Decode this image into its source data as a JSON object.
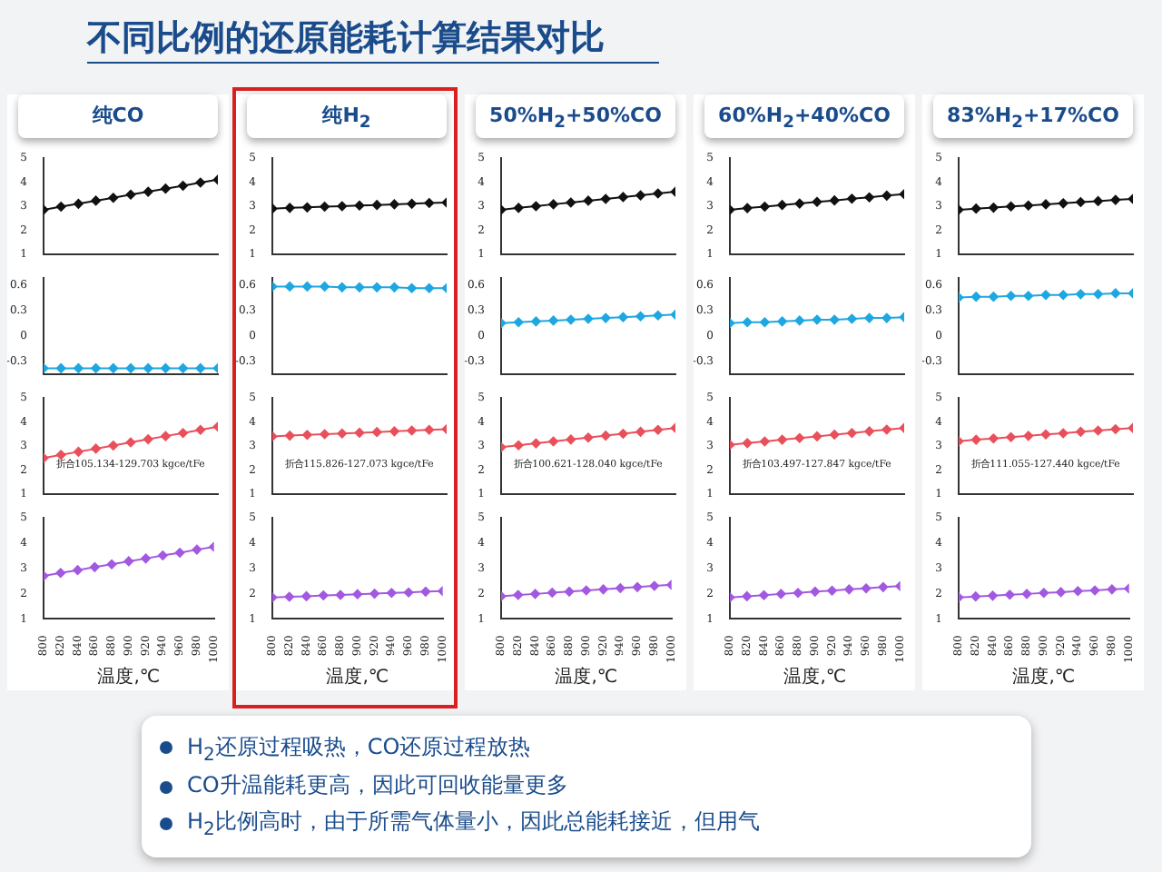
{
  "chart_data": [
    {
      "type": "line",
      "title": "纯CO",
      "annotations": [
        "不同比例的还原能耗计算结果对比",
        "H$_{2}$还原过程吸热，CO还原过程放热",
        "CO升温能耗更高，因此可回收能量更多",
        "H$_{2}$比例高时，由于所需气体量小，因此总能耗接近，但用气"
      ],
      "x": [
        800,
        820,
        840,
        860,
        880,
        900,
        920,
        940,
        960,
        980,
        1000
      ],
      "series": [
        {
          "color": "#111111",
          "values": [
            2.85,
            2.98,
            3.1,
            3.23,
            3.35,
            3.48,
            3.6,
            3.73,
            3.85,
            3.98,
            4.1
          ]
        }
      ],
      "xlim": [
        800,
        1000
      ],
      "xticks": [
        800,
        820,
        840,
        860,
        880,
        900,
        920,
        940,
        960,
        980,
        1000
      ],
      "ylim": [
        1,
        5
      ],
      "yticks": [
        1,
        2,
        3,
        4,
        5
      ],
      "tick_labels": "y",
      "marker": "diamond",
      "grid": false,
      "legend": false
    },
    {
      "type": "line",
      "title": "纯H$_{2}$",
      "x": [
        800,
        820,
        840,
        860,
        880,
        900,
        920,
        940,
        960,
        980,
        1000
      ],
      "series": [
        {
          "color": "#111111",
          "values": [
            2.9,
            2.93,
            2.95,
            2.98,
            3.0,
            3.03,
            3.05,
            3.08,
            3.1,
            3.13,
            3.15
          ]
        }
      ],
      "xlim": [
        800,
        1000
      ],
      "xticks": [
        800,
        820,
        840,
        860,
        880,
        900,
        920,
        940,
        960,
        980,
        1000
      ],
      "ylim": [
        1,
        5
      ],
      "yticks": [
        1,
        2,
        3,
        4,
        5
      ],
      "tick_labels": "y",
      "marker": "diamond",
      "grid": false,
      "legend": false
    },
    {
      "type": "line",
      "title": "50%H$_{2}$+50%CO",
      "x": [
        800,
        820,
        840,
        860,
        880,
        900,
        920,
        940,
        960,
        980,
        1000
      ],
      "series": [
        {
          "color": "#111111",
          "values": [
            2.85,
            2.93,
            3.0,
            3.08,
            3.15,
            3.23,
            3.3,
            3.38,
            3.45,
            3.53,
            3.6
          ]
        }
      ],
      "xlim": [
        800,
        1000
      ],
      "xticks": [
        800,
        820,
        840,
        860,
        880,
        900,
        920,
        940,
        960,
        980,
        1000
      ],
      "ylim": [
        1,
        5
      ],
      "yticks": [
        1,
        2,
        3,
        4,
        5
      ],
      "tick_labels": "y",
      "marker": "diamond",
      "grid": false,
      "legend": false
    },
    {
      "type": "line",
      "title": "60%H$_{2}$+40%CO",
      "x": [
        800,
        820,
        840,
        860,
        880,
        900,
        920,
        940,
        960,
        980,
        1000
      ],
      "series": [
        {
          "color": "#111111",
          "values": [
            2.85,
            2.92,
            2.98,
            3.05,
            3.11,
            3.18,
            3.24,
            3.31,
            3.37,
            3.44,
            3.5
          ]
        }
      ],
      "xlim": [
        800,
        1000
      ],
      "xticks": [
        800,
        820,
        840,
        860,
        880,
        900,
        920,
        940,
        960,
        980,
        1000
      ],
      "ylim": [
        1,
        5
      ],
      "yticks": [
        1,
        2,
        3,
        4,
        5
      ],
      "tick_labels": "y",
      "marker": "diamond",
      "grid": false,
      "legend": false
    },
    {
      "type": "line",
      "title": "83%H$_{2}$+17%CO",
      "x": [
        800,
        820,
        840,
        860,
        880,
        900,
        920,
        940,
        960,
        980,
        1000
      ],
      "series": [
        {
          "color": "#111111",
          "values": [
            2.85,
            2.9,
            2.94,
            2.99,
            3.03,
            3.08,
            3.12,
            3.17,
            3.21,
            3.26,
            3.3
          ]
        }
      ],
      "xlim": [
        800,
        1000
      ],
      "xticks": [
        800,
        820,
        840,
        860,
        880,
        900,
        920,
        940,
        960,
        980,
        1000
      ],
      "ylim": [
        1,
        5
      ],
      "yticks": [
        1,
        2,
        3,
        4,
        5
      ],
      "tick_labels": "y",
      "marker": "diamond",
      "grid": false,
      "legend": false
    },
    {
      "type": "line",
      "x": [
        800,
        820,
        840,
        860,
        880,
        900,
        920,
        940,
        960,
        980,
        1000
      ],
      "series": [
        {
          "color": "#1ea7e1",
          "values": [
            -0.38,
            -0.38,
            -0.38,
            -0.38,
            -0.38,
            -0.38,
            -0.38,
            -0.38,
            -0.38,
            -0.38,
            -0.38
          ]
        }
      ],
      "xlim": [
        800,
        1000
      ],
      "xticks": [
        800,
        820,
        840,
        860,
        880,
        900,
        920,
        940,
        960,
        980,
        1000
      ],
      "ylim": [
        -0.45,
        0.68
      ],
      "yticks": [
        -0.3,
        0.0,
        0.3,
        0.6
      ],
      "tick_labels": "y",
      "marker": "diamond",
      "grid": false,
      "legend": false
    },
    {
      "type": "line",
      "x": [
        800,
        820,
        840,
        860,
        880,
        900,
        920,
        940,
        960,
        980,
        1000
      ],
      "series": [
        {
          "color": "#1ea7e1",
          "values": [
            0.58,
            0.58,
            0.58,
            0.58,
            0.57,
            0.57,
            0.57,
            0.57,
            0.56,
            0.56,
            0.56
          ]
        }
      ],
      "xlim": [
        800,
        1000
      ],
      "xticks": [
        800,
        820,
        840,
        860,
        880,
        900,
        920,
        940,
        960,
        980,
        1000
      ],
      "ylim": [
        -0.45,
        0.68
      ],
      "yticks": [
        -0.3,
        0.0,
        0.3,
        0.6
      ],
      "tick_labels": "y",
      "marker": "diamond",
      "grid": false,
      "legend": false
    },
    {
      "type": "line",
      "x": [
        800,
        820,
        840,
        860,
        880,
        900,
        920,
        940,
        960,
        980,
        1000
      ],
      "series": [
        {
          "color": "#1ea7e1",
          "values": [
            0.15,
            0.16,
            0.17,
            0.18,
            0.19,
            0.2,
            0.21,
            0.22,
            0.23,
            0.24,
            0.25
          ]
        }
      ],
      "xlim": [
        800,
        1000
      ],
      "xticks": [
        800,
        820,
        840,
        860,
        880,
        900,
        920,
        940,
        960,
        980,
        1000
      ],
      "ylim": [
        -0.45,
        0.68
      ],
      "yticks": [
        -0.3,
        0.0,
        0.3,
        0.6
      ],
      "tick_labels": "y",
      "marker": "diamond",
      "grid": false,
      "legend": false
    },
    {
      "type": "line",
      "x": [
        800,
        820,
        840,
        860,
        880,
        900,
        920,
        940,
        960,
        980,
        1000
      ],
      "series": [
        {
          "color": "#1ea7e1",
          "values": [
            0.15,
            0.16,
            0.16,
            0.17,
            0.18,
            0.19,
            0.19,
            0.2,
            0.21,
            0.21,
            0.22
          ]
        }
      ],
      "xlim": [
        800,
        1000
      ],
      "xticks": [
        800,
        820,
        840,
        860,
        880,
        900,
        920,
        940,
        960,
        980,
        1000
      ],
      "ylim": [
        -0.45,
        0.68
      ],
      "yticks": [
        -0.3,
        0.0,
        0.3,
        0.6
      ],
      "tick_labels": "y",
      "marker": "diamond",
      "grid": false,
      "legend": false
    },
    {
      "type": "line",
      "x": [
        800,
        820,
        840,
        860,
        880,
        900,
        920,
        940,
        960,
        980,
        1000
      ],
      "series": [
        {
          "color": "#1ea7e1",
          "values": [
            0.45,
            0.46,
            0.46,
            0.47,
            0.47,
            0.48,
            0.48,
            0.49,
            0.49,
            0.5,
            0.5
          ]
        }
      ],
      "xlim": [
        800,
        1000
      ],
      "xticks": [
        800,
        820,
        840,
        860,
        880,
        900,
        920,
        940,
        960,
        980,
        1000
      ],
      "ylim": [
        -0.45,
        0.68
      ],
      "yticks": [
        -0.3,
        0.0,
        0.3,
        0.6
      ],
      "tick_labels": "y",
      "marker": "diamond",
      "grid": false,
      "legend": false
    },
    {
      "type": "line",
      "annotations": [
        "折合105.134-129.703 kgce/tFe"
      ],
      "x": [
        800,
        820,
        840,
        860,
        880,
        900,
        920,
        940,
        960,
        980,
        1000
      ],
      "series": [
        {
          "color": "#e8505b",
          "values": [
            2.5,
            2.63,
            2.76,
            2.89,
            3.02,
            3.15,
            3.28,
            3.41,
            3.54,
            3.67,
            3.8
          ]
        }
      ],
      "xlim": [
        800,
        1000
      ],
      "xticks": [
        800,
        820,
        840,
        860,
        880,
        900,
        920,
        940,
        960,
        980,
        1000
      ],
      "ylim": [
        1,
        5
      ],
      "yticks": [
        1,
        2,
        3,
        4,
        5
      ],
      "tick_labels": "y",
      "marker": "diamond",
      "grid": false,
      "legend": false
    },
    {
      "type": "line",
      "annotations": [
        "折合115.826-127.073 kgce/tFe"
      ],
      "x": [
        800,
        820,
        840,
        860,
        880,
        900,
        920,
        940,
        960,
        980,
        1000
      ],
      "series": [
        {
          "color": "#e8505b",
          "values": [
            3.4,
            3.43,
            3.46,
            3.49,
            3.52,
            3.55,
            3.58,
            3.61,
            3.64,
            3.67,
            3.7
          ]
        }
      ],
      "xlim": [
        800,
        1000
      ],
      "xticks": [
        800,
        820,
        840,
        860,
        880,
        900,
        920,
        940,
        960,
        980,
        1000
      ],
      "ylim": [
        1,
        5
      ],
      "yticks": [
        1,
        2,
        3,
        4,
        5
      ],
      "tick_labels": "y",
      "marker": "diamond",
      "grid": false,
      "legend": false
    },
    {
      "type": "line",
      "annotations": [
        "折合100.621-128.040 kgce/tFe"
      ],
      "x": [
        800,
        820,
        840,
        860,
        880,
        900,
        920,
        940,
        960,
        980,
        1000
      ],
      "series": [
        {
          "color": "#e8505b",
          "values": [
            2.95,
            3.03,
            3.11,
            3.19,
            3.27,
            3.35,
            3.43,
            3.51,
            3.59,
            3.67,
            3.75
          ]
        }
      ],
      "xlim": [
        800,
        1000
      ],
      "xticks": [
        800,
        820,
        840,
        860,
        880,
        900,
        920,
        940,
        960,
        980,
        1000
      ],
      "ylim": [
        1,
        5
      ],
      "yticks": [
        1,
        2,
        3,
        4,
        5
      ],
      "tick_labels": "y",
      "marker": "diamond",
      "grid": false,
      "legend": false
    },
    {
      "type": "line",
      "annotations": [
        "折合103.497-127.847 kgce/tFe"
      ],
      "x": [
        800,
        820,
        840,
        860,
        880,
        900,
        920,
        940,
        960,
        980,
        1000
      ],
      "series": [
        {
          "color": "#e8505b",
          "values": [
            3.05,
            3.12,
            3.19,
            3.26,
            3.33,
            3.4,
            3.47,
            3.54,
            3.61,
            3.68,
            3.75
          ]
        }
      ],
      "xlim": [
        800,
        1000
      ],
      "xticks": [
        800,
        820,
        840,
        860,
        880,
        900,
        920,
        940,
        960,
        980,
        1000
      ],
      "ylim": [
        1,
        5
      ],
      "yticks": [
        1,
        2,
        3,
        4,
        5
      ],
      "tick_labels": "y",
      "marker": "diamond",
      "grid": false,
      "legend": false
    },
    {
      "type": "line",
      "annotations": [
        "折合111.055-127.440 kgce/tFe"
      ],
      "x": [
        800,
        820,
        840,
        860,
        880,
        900,
        920,
        940,
        960,
        980,
        1000
      ],
      "series": [
        {
          "color": "#e8505b",
          "values": [
            3.2,
            3.26,
            3.31,
            3.37,
            3.42,
            3.48,
            3.53,
            3.59,
            3.64,
            3.7,
            3.75
          ]
        }
      ],
      "xlim": [
        800,
        1000
      ],
      "xticks": [
        800,
        820,
        840,
        860,
        880,
        900,
        920,
        940,
        960,
        980,
        1000
      ],
      "ylim": [
        1,
        5
      ],
      "yticks": [
        1,
        2,
        3,
        4,
        5
      ],
      "tick_labels": "y",
      "marker": "diamond",
      "grid": false,
      "legend": false
    },
    {
      "type": "line",
      "xlabel": "温度,℃",
      "x": [
        800,
        820,
        840,
        860,
        880,
        900,
        920,
        940,
        960,
        980,
        1000
      ],
      "series": [
        {
          "color": "#a259e0",
          "values": [
            2.7,
            2.82,
            2.93,
            3.05,
            3.16,
            3.28,
            3.39,
            3.51,
            3.62,
            3.74,
            3.85
          ]
        }
      ],
      "xlim": [
        800,
        1000
      ],
      "xticks": [
        800,
        820,
        840,
        860,
        880,
        900,
        920,
        940,
        960,
        980,
        1000
      ],
      "ylim": [
        1,
        5
      ],
      "yticks": [
        1,
        2,
        3,
        4,
        5
      ],
      "marker": "diamond",
      "grid": false,
      "legend": false
    },
    {
      "type": "line",
      "xlabel": "温度,℃",
      "x": [
        800,
        820,
        840,
        860,
        880,
        900,
        920,
        940,
        960,
        980,
        1000
      ],
      "series": [
        {
          "color": "#a259e0",
          "values": [
            1.85,
            1.88,
            1.9,
            1.93,
            1.95,
            1.98,
            2.0,
            2.03,
            2.05,
            2.08,
            2.1
          ]
        }
      ],
      "xlim": [
        800,
        1000
      ],
      "xticks": [
        800,
        820,
        840,
        860,
        880,
        900,
        920,
        940,
        960,
        980,
        1000
      ],
      "ylim": [
        1,
        5
      ],
      "yticks": [
        1,
        2,
        3,
        4,
        5
      ],
      "marker": "diamond",
      "grid": false,
      "legend": false
    },
    {
      "type": "line",
      "xlabel": "温度,℃",
      "x": [
        800,
        820,
        840,
        860,
        880,
        900,
        920,
        940,
        960,
        980,
        1000
      ],
      "series": [
        {
          "color": "#a259e0",
          "values": [
            1.9,
            1.95,
            1.99,
            2.04,
            2.08,
            2.13,
            2.17,
            2.22,
            2.26,
            2.31,
            2.35
          ]
        }
      ],
      "xlim": [
        800,
        1000
      ],
      "xticks": [
        800,
        820,
        840,
        860,
        880,
        900,
        920,
        940,
        960,
        980,
        1000
      ],
      "ylim": [
        1,
        5
      ],
      "yticks": [
        1,
        2,
        3,
        4,
        5
      ],
      "marker": "diamond",
      "grid": false,
      "legend": false
    },
    {
      "type": "line",
      "xlabel": "温度,℃",
      "x": [
        800,
        820,
        840,
        860,
        880,
        900,
        920,
        940,
        960,
        980,
        1000
      ],
      "series": [
        {
          "color": "#a259e0",
          "values": [
            1.85,
            1.9,
            1.94,
            1.99,
            2.03,
            2.08,
            2.12,
            2.17,
            2.21,
            2.26,
            2.3
          ]
        }
      ],
      "xlim": [
        800,
        1000
      ],
      "xticks": [
        800,
        820,
        840,
        860,
        880,
        900,
        920,
        940,
        960,
        980,
        1000
      ],
      "ylim": [
        1,
        5
      ],
      "yticks": [
        1,
        2,
        3,
        4,
        5
      ],
      "marker": "diamond",
      "grid": false,
      "legend": false
    },
    {
      "type": "line",
      "xlabel": "温度,℃",
      "x": [
        800,
        820,
        840,
        860,
        880,
        900,
        920,
        940,
        960,
        980,
        1000
      ],
      "series": [
        {
          "color": "#a259e0",
          "values": [
            1.85,
            1.89,
            1.92,
            1.96,
            1.99,
            2.03,
            2.06,
            2.1,
            2.13,
            2.17,
            2.2
          ]
        }
      ],
      "xlim": [
        800,
        1000
      ],
      "xticks": [
        800,
        820,
        840,
        860,
        880,
        900,
        920,
        940,
        960,
        980,
        1000
      ],
      "ylim": [
        1,
        5
      ],
      "yticks": [
        1,
        2,
        3,
        4,
        5
      ],
      "marker": "diamond",
      "grid": false,
      "legend": false
    }
  ]
}
